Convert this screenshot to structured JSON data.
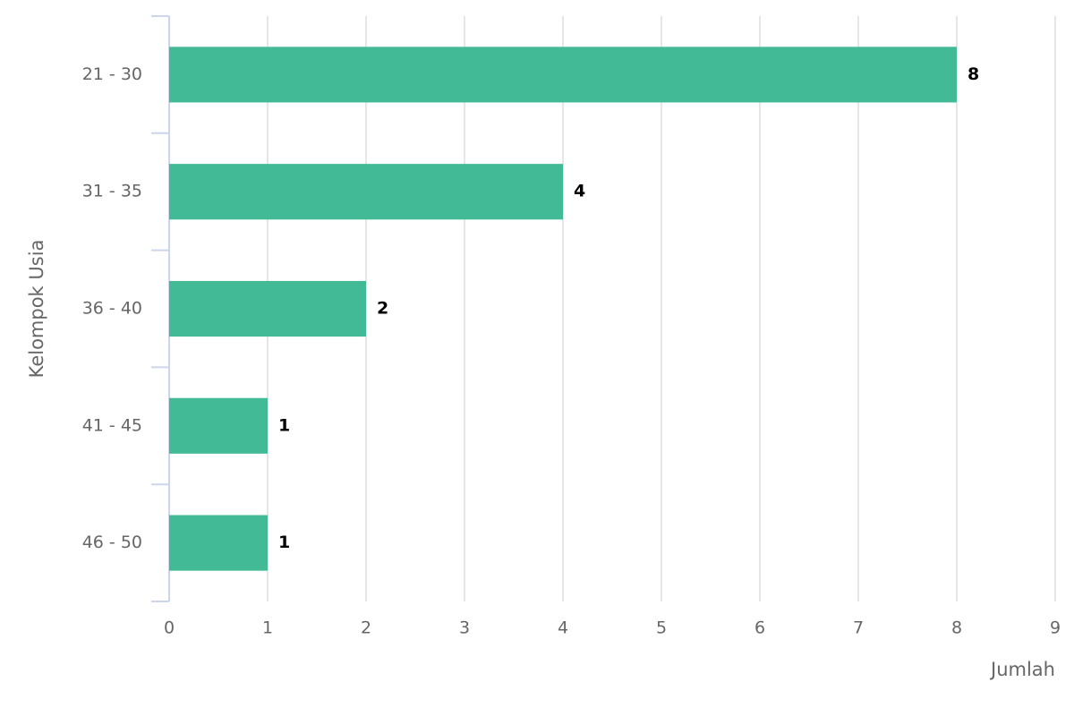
{
  "chart_data": {
    "type": "bar",
    "orientation": "horizontal",
    "categories": [
      "21 - 30",
      "31 - 35",
      "36 - 40",
      "41 - 45",
      "46 - 50"
    ],
    "values": [
      8,
      4,
      2,
      1,
      1
    ],
    "color": "#42ba96",
    "xlabel": "Jumlah",
    "ylabel": "Kelompok Usia",
    "xlim": [
      0,
      9
    ],
    "xticks": [
      0,
      1,
      2,
      3,
      4,
      5,
      6,
      7,
      8,
      9
    ],
    "grid": true
  }
}
